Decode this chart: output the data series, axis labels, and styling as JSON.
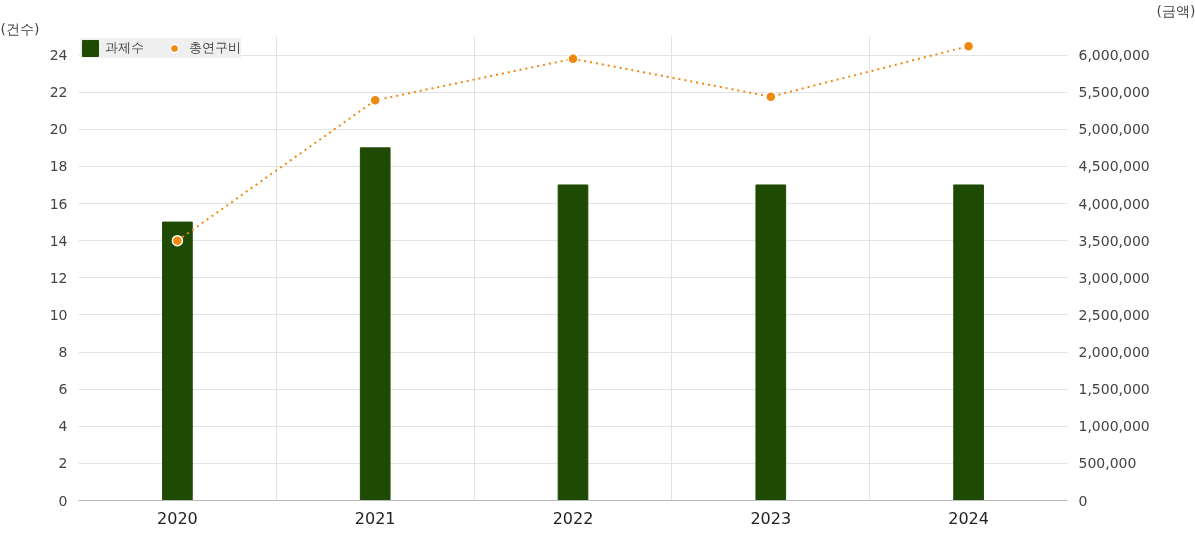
{
  "chart_data": {
    "type": "bar",
    "categories": [
      "2020",
      "2021",
      "2022",
      "2023",
      "2024"
    ],
    "ylabel": "(건수)",
    "y2label": "(금액)",
    "series": [
      {
        "name": "과제수",
        "type": "bar",
        "color": "#1e4a04",
        "values": [
          15,
          19,
          17,
          17,
          17
        ]
      },
      {
        "name": "총연구비",
        "type": "line",
        "axis": "y2",
        "color": "#f0880f",
        "values": [
          3500000,
          5390000,
          5950000,
          5440000,
          6120000
        ],
        "marker": "circle",
        "line_style": "dotted"
      }
    ],
    "ylim": [
      0,
      25
    ],
    "yticks": [
      0,
      2,
      4,
      6,
      8,
      10,
      12,
      14,
      16,
      18,
      20,
      22,
      24
    ],
    "y2lim": [
      0,
      6250000
    ],
    "y2ticks": [
      {
        "value": 0,
        "label": "0"
      },
      {
        "value": 500000,
        "label": "500,000"
      },
      {
        "value": 1000000,
        "label": "1,000,000"
      },
      {
        "value": 1500000,
        "label": "1,500,000"
      },
      {
        "value": 2000000,
        "label": "2,000,000"
      },
      {
        "value": 2500000,
        "label": "2,500,000"
      },
      {
        "value": 3000000,
        "label": "3,000,000"
      },
      {
        "value": 3500000,
        "label": "3,500,000"
      },
      {
        "value": 4000000,
        "label": "4,000,000"
      },
      {
        "value": 4500000,
        "label": "4,500,000"
      },
      {
        "value": 5000000,
        "label": "5,000,000"
      },
      {
        "value": 5500000,
        "label": "5,500,000"
      },
      {
        "value": 6000000,
        "label": "6,000,000"
      }
    ],
    "grid": true,
    "legend": "top left"
  }
}
